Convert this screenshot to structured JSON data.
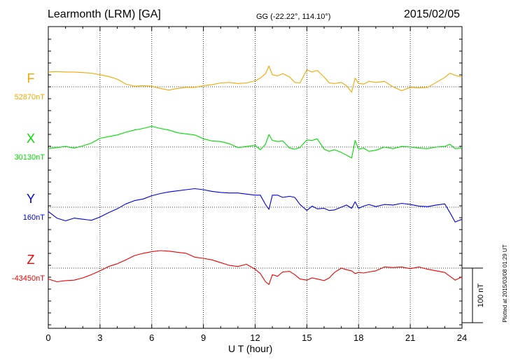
{
  "header": {
    "station": "Learmonth (LRM)  [GA]",
    "coords": "GG (-22.22°, 114.10°)",
    "date": "2015/02/05"
  },
  "footer": {
    "plotted": "Plotted at 2015/03/08 01:29 UT"
  },
  "chart_data": {
    "type": "line",
    "xlabel": "U T (hour)",
    "xlim": [
      0,
      24
    ],
    "xticks": [
      "0",
      "3",
      "6",
      "9",
      "12",
      "15",
      "18",
      "21",
      "24"
    ],
    "scale_label": "100 nT",
    "scale_nT": 100,
    "grid": true,
    "colors": {
      "F": "#f0a800",
      "X": "#00dd00",
      "Y": "#0000dd",
      "Z": "#ee0000"
    },
    "series": [
      {
        "name": "F",
        "baseline_label": "52870nT",
        "baseline": 52870,
        "x": [
          0,
          0.5,
          1,
          1.5,
          2,
          2.5,
          3,
          3.5,
          4,
          4.5,
          5,
          5.5,
          6,
          6.5,
          7,
          7.5,
          8,
          8.5,
          9,
          9.5,
          10,
          10.5,
          11,
          11.5,
          12,
          12.3,
          12.6,
          12.8,
          13,
          13.3,
          13.6,
          14,
          14.3,
          14.6,
          15,
          15.3,
          15.6,
          16,
          16.3,
          16.6,
          17,
          17.3,
          17.6,
          17.8,
          18,
          18.3,
          18.6,
          19,
          19.5,
          20,
          20.5,
          21,
          21.5,
          22,
          22.5,
          23,
          23.3,
          23.6,
          24
        ],
        "values": [
          27,
          28,
          27,
          27,
          26,
          25,
          22,
          19,
          14,
          5,
          1,
          2,
          1,
          -3,
          -6,
          -3,
          -1,
          -1,
          2,
          4,
          7,
          8,
          6,
          7,
          11,
          16,
          24,
          38,
          22,
          20,
          24,
          18,
          8,
          7,
          31,
          27,
          30,
          18,
          7,
          6,
          8,
          2,
          -10,
          16,
          6,
          5,
          10,
          8,
          10,
          0,
          -7,
          -1,
          -2,
          -1,
          8,
          17,
          25,
          21,
          18
        ]
      },
      {
        "name": "X",
        "baseline_label": "30130nT",
        "baseline": 30130,
        "x": [
          0,
          0.5,
          1,
          1.5,
          2,
          2.5,
          3,
          3.5,
          4,
          4.5,
          5,
          5.5,
          6,
          6.5,
          7,
          7.5,
          8,
          8.5,
          9,
          9.5,
          10,
          10.5,
          11,
          11.5,
          12,
          12.3,
          12.6,
          12.8,
          13,
          13.3,
          13.6,
          14,
          14.3,
          14.6,
          15,
          15.3,
          15.6,
          16,
          16.3,
          16.6,
          17,
          17.3,
          17.6,
          17.8,
          18,
          18.3,
          18.6,
          19,
          19.5,
          20,
          20.5,
          21,
          21.5,
          22,
          22.5,
          23,
          23.3,
          23.6,
          24
        ],
        "values": [
          -3,
          -1,
          1,
          -2,
          2,
          7,
          16,
          19,
          22,
          27,
          31,
          34,
          38,
          34,
          31,
          26,
          24,
          22,
          15,
          11,
          10,
          6,
          -1,
          1,
          3,
          -5,
          5,
          23,
          12,
          10,
          11,
          -2,
          -4,
          -1,
          13,
          12,
          15,
          -4,
          -8,
          -5,
          -10,
          -15,
          -20,
          12,
          -4,
          -2,
          -8,
          -6,
          0,
          -3,
          1,
          0,
          -2,
          -3,
          0,
          1,
          5,
          -3,
          -2
        ]
      },
      {
        "name": "Y",
        "baseline_label": "160nT",
        "baseline": 160,
        "x": [
          0,
          0.5,
          1,
          1.5,
          2,
          2.5,
          3,
          3.5,
          4,
          4.5,
          5,
          5.5,
          6,
          6.5,
          7,
          7.5,
          8,
          8.5,
          9,
          9.5,
          10,
          10.5,
          11,
          11.5,
          12,
          12.3,
          12.6,
          12.8,
          13,
          13.3,
          13.6,
          14,
          14.3,
          14.6,
          15,
          15.3,
          15.6,
          16,
          16.3,
          16.6,
          17,
          17.3,
          17.6,
          17.8,
          18,
          18.3,
          18.6,
          19,
          19.5,
          20,
          20.5,
          21,
          21.5,
          22,
          22.5,
          23,
          23.3,
          23.6,
          24
        ],
        "values": [
          -8,
          -20,
          -25,
          -20,
          -22,
          -24,
          -18,
          -10,
          -3,
          6,
          12,
          15,
          21,
          25,
          28,
          30,
          32,
          34,
          32,
          29,
          27,
          26,
          26,
          24,
          22,
          22,
          5,
          -4,
          22,
          22,
          18,
          20,
          18,
          5,
          -6,
          2,
          -3,
          -2,
          -6,
          -5,
          0,
          4,
          -2,
          10,
          -2,
          2,
          5,
          1,
          5,
          4,
          7,
          5,
          2,
          1,
          4,
          6,
          -10,
          -27,
          -22
        ]
      },
      {
        "name": "Z",
        "baseline_label": "-43450nT",
        "baseline": -43450,
        "x": [
          0,
          0.5,
          1,
          1.5,
          2,
          2.5,
          3,
          3.5,
          4,
          4.5,
          5,
          5.5,
          6,
          6.5,
          7,
          7.5,
          8,
          8.5,
          9,
          9.5,
          10,
          10.5,
          11,
          11.5,
          12,
          12.3,
          12.6,
          12.8,
          13,
          13.3,
          13.6,
          14,
          14.3,
          14.6,
          15,
          15.3,
          15.6,
          16,
          16.3,
          16.6,
          17,
          17.3,
          17.6,
          17.8,
          18,
          18.3,
          18.6,
          19,
          19.5,
          20,
          20.5,
          21,
          21.5,
          22,
          22.5,
          23,
          23.3,
          23.6,
          24
        ],
        "values": [
          -20,
          -25,
          -23,
          -22,
          -18,
          -12,
          -5,
          3,
          8,
          15,
          23,
          27,
          30,
          32,
          31,
          29,
          27,
          20,
          18,
          15,
          10,
          5,
          3,
          7,
          -2,
          -10,
          -25,
          -30,
          -12,
          -15,
          -7,
          -6,
          -12,
          -20,
          -22,
          -18,
          -20,
          -23,
          -18,
          -8,
          0,
          -3,
          -5,
          -10,
          -8,
          -9,
          -7,
          -5,
          2,
          1,
          2,
          -1,
          2,
          -2,
          -5,
          -8,
          -15,
          -22,
          -16
        ]
      }
    ]
  }
}
